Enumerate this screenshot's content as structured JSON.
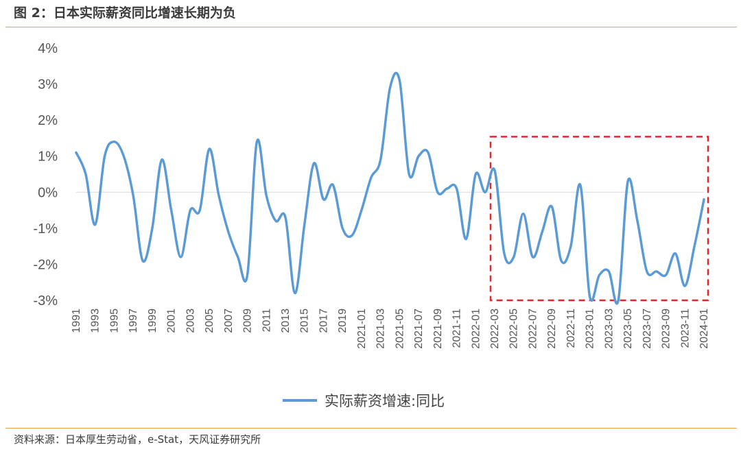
{
  "header": {
    "title": "图 2：日本实际薪资同比增速长期为负"
  },
  "footer": {
    "source": "资料来源：日本厚生劳动省，e-Stat，天风证券研究所"
  },
  "colors": {
    "line": "#5b9bd5",
    "highlight_box": "#e0282c",
    "rule": "#f0a04b"
  },
  "chart_data": {
    "type": "line",
    "title": "图 2：日本实际薪资同比增速长期为负",
    "xlabel": "",
    "ylabel": "",
    "ylim": [
      -3,
      4
    ],
    "yticks": [
      "-3%",
      "-2%",
      "-1%",
      "0%",
      "1%",
      "2%",
      "3%",
      "4%"
    ],
    "grid": false,
    "legend": "bottom",
    "x_tick_labels": [
      "1991",
      "1993",
      "1995",
      "1997",
      "1999",
      "2001",
      "2003",
      "2005",
      "2007",
      "2009",
      "2011",
      "2013",
      "2015",
      "2017",
      "2019",
      "2021-01",
      "2021-03",
      "2021-05",
      "2021-07",
      "2021-09",
      "2021-11",
      "2022-01",
      "2022-03",
      "2022-05",
      "2022-07",
      "2022-09",
      "2022-11",
      "2023-01",
      "2023-03",
      "2023-05",
      "2023-07",
      "2023-09",
      "2023-11",
      "2024-01"
    ],
    "x": [
      "1991",
      "1992",
      "1993",
      "1994",
      "1995",
      "1996",
      "1997",
      "1998",
      "1999",
      "2000",
      "2001",
      "2002",
      "2003",
      "2004",
      "2005",
      "2006",
      "2007",
      "2008",
      "2009",
      "2010",
      "2011",
      "2012",
      "2013",
      "2014",
      "2015",
      "2016",
      "2017",
      "2018",
      "2019",
      "2020",
      "2021-01",
      "2021-02",
      "2021-03",
      "2021-04",
      "2021-05",
      "2021-06",
      "2021-07",
      "2021-08",
      "2021-09",
      "2021-10",
      "2021-11",
      "2021-12",
      "2022-01",
      "2022-02",
      "2022-03",
      "2022-04",
      "2022-05",
      "2022-06",
      "2022-07",
      "2022-08",
      "2022-09",
      "2022-10",
      "2022-11",
      "2022-12",
      "2023-01",
      "2023-02",
      "2023-03",
      "2023-04",
      "2023-05",
      "2023-06",
      "2023-07",
      "2023-08",
      "2023-09",
      "2023-10",
      "2023-11",
      "2023-12",
      "2024-01"
    ],
    "series": [
      {
        "name": "实际薪资增速:同比",
        "values": [
          1.1,
          0.5,
          -0.9,
          1.0,
          1.4,
          1.0,
          -0.1,
          -1.9,
          -1.0,
          0.9,
          -0.5,
          -1.8,
          -0.5,
          -0.5,
          1.2,
          -0.1,
          -1.1,
          -1.8,
          -2.3,
          1.4,
          -0.1,
          -0.8,
          -0.7,
          -2.8,
          -0.9,
          0.8,
          -0.2,
          0.2,
          -1.0,
          -1.2,
          -0.5,
          0.4,
          0.9,
          2.9,
          3.1,
          0.5,
          1.0,
          1.1,
          0.0,
          0.1,
          0.1,
          -1.3,
          0.5,
          0.0,
          0.6,
          -1.7,
          -1.8,
          -0.6,
          -1.8,
          -1.1,
          -0.4,
          -1.9,
          -1.5,
          0.2,
          -2.9,
          -2.3,
          -2.2,
          -3.0,
          0.3,
          -0.8,
          -2.2,
          -2.2,
          -2.3,
          -1.7,
          -2.6,
          -1.5,
          -0.2
        ]
      }
    ],
    "highlight": {
      "from": "2022-03",
      "to": "2024-01",
      "ymin": -3,
      "ymax": 1.5
    }
  }
}
